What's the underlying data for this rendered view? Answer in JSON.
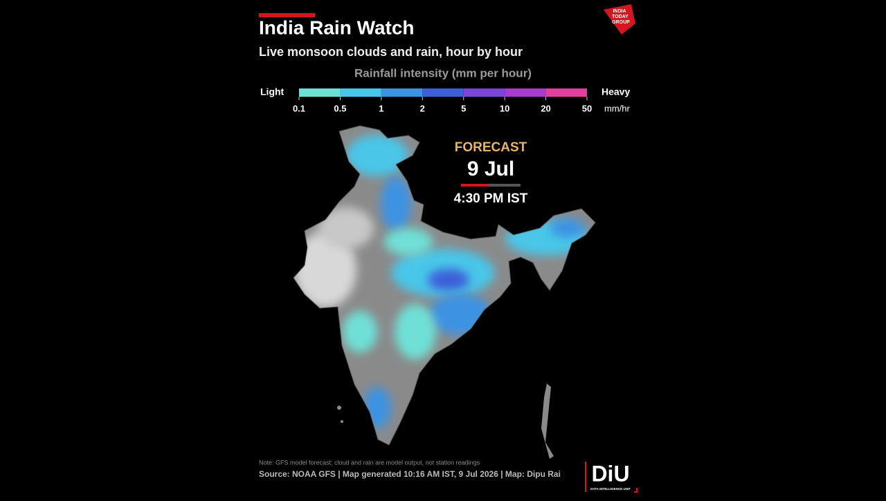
{
  "header": {
    "title": "India Rain Watch",
    "subtitle": "Live monsoon clouds and rain, hour by hour"
  },
  "legend": {
    "title": "Rainfall intensity (mm per hour)",
    "low_label": "Light",
    "high_label": "Heavy",
    "unit": "mm/hr",
    "ticks": [
      0.1,
      0.5,
      1,
      2,
      5,
      10,
      20,
      50
    ],
    "colors": [
      "#6fe0d6",
      "#48c6e8",
      "#3c93e2",
      "#3d5fd8",
      "#7b46d8",
      "#a83ccf",
      "#e2409e"
    ]
  },
  "forecast": {
    "label": "FORECAST",
    "date": "9 Jul",
    "time": "4:30 PM IST"
  },
  "footer": {
    "note": "Note: GFS model forecast; cloud and rain are model output, not station readings",
    "source": "Source: NOAA GFS  |  Map generated 10:16 AM IST, 9 Jul 2026  |  Map: Dipu Rai"
  },
  "logos": {
    "publisher": [
      "INDIA",
      "TODAY",
      "GROUP"
    ],
    "unit": "DiU",
    "unit_full": "DATA INTELLIGENCE UNIT"
  }
}
